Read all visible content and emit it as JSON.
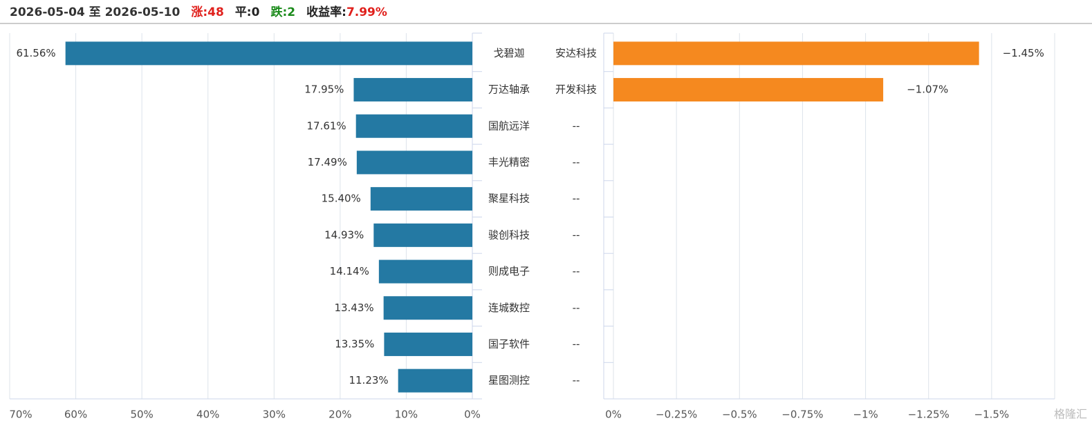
{
  "header": {
    "date_range": "2026-05-04 至 2026-05-10",
    "stats": [
      {
        "label": "涨:",
        "value": "48",
        "label_color": "#e0201c",
        "value_color": "#e0201c"
      },
      {
        "label": "平:",
        "value": "0",
        "label_color": "#222222",
        "value_color": "#222222"
      },
      {
        "label": "跌:",
        "value": "2",
        "label_color": "#1a8a1a",
        "value_color": "#1a8a1a"
      },
      {
        "label": "收益率:",
        "value": "7.99%",
        "label_color": "#222222",
        "value_color": "#e0201c"
      }
    ]
  },
  "chart_data": [
    {
      "type": "bar",
      "orientation": "horizontal",
      "categories": [
        "戈碧迦",
        "万达轴承",
        "国航远洋",
        "丰光精密",
        "聚星科技",
        "骏创科技",
        "则成电子",
        "连城数控",
        "国子软件",
        "星图测控"
      ],
      "values": [
        61.56,
        17.95,
        17.61,
        17.49,
        15.4,
        14.93,
        14.14,
        13.43,
        13.35,
        11.23
      ],
      "value_labels": [
        "61.56%",
        "17.95%",
        "17.61%",
        "17.49%",
        "15.40%",
        "14.93%",
        "14.14%",
        "13.43%",
        "13.35%",
        "11.23%"
      ],
      "color": "#2479a3",
      "xlim": [
        0,
        70
      ],
      "xticks": [
        {
          "value": 70,
          "label": "70%"
        },
        {
          "value": 60,
          "label": "60%"
        },
        {
          "value": 50,
          "label": "50%"
        },
        {
          "value": 40,
          "label": "40%"
        },
        {
          "value": 30,
          "label": "30%"
        },
        {
          "value": 20,
          "label": "20%"
        },
        {
          "value": 10,
          "label": "10%"
        },
        {
          "value": 0,
          "label": "0%"
        }
      ],
      "grid": true
    },
    {
      "type": "bar",
      "orientation": "horizontal",
      "categories": [
        "安达科技",
        "开发科技",
        "--",
        "--",
        "--",
        "--",
        "--",
        "--",
        "--",
        "--"
      ],
      "values": [
        -1.45,
        -1.07,
        null,
        null,
        null,
        null,
        null,
        null,
        null,
        null
      ],
      "value_labels": [
        "−1.45%",
        "−1.07%",
        null,
        null,
        null,
        null,
        null,
        null,
        null,
        null
      ],
      "color": "#f5891f",
      "xlim": [
        0,
        -1.75
      ],
      "xticks": [
        {
          "value": 0,
          "label": "0%"
        },
        {
          "value": -0.25,
          "label": "−0.25%"
        },
        {
          "value": -0.5,
          "label": "−0.5%"
        },
        {
          "value": -0.75,
          "label": "−0.75%"
        },
        {
          "value": -1,
          "label": "−1%"
        },
        {
          "value": -1.25,
          "label": "−1.25%"
        },
        {
          "value": -1.5,
          "label": "−1.5%"
        }
      ],
      "grid": true
    }
  ],
  "watermark": "格隆汇"
}
